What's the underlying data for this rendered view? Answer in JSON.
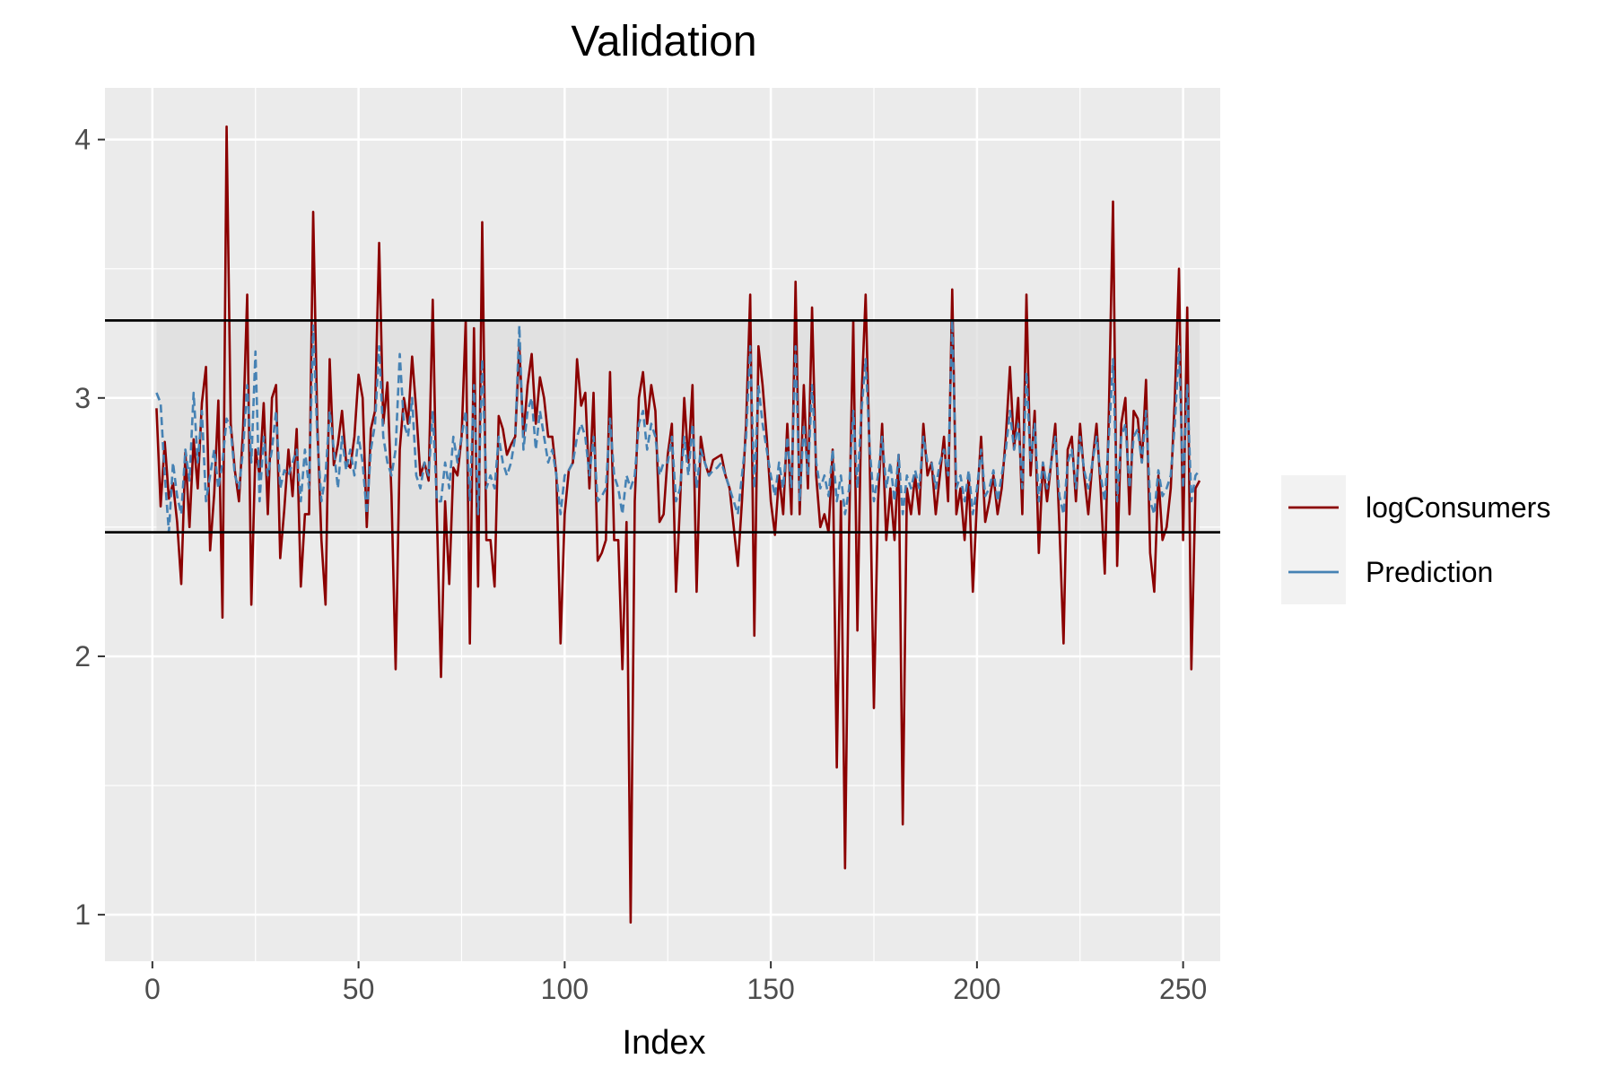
{
  "chart_data": {
    "type": "line",
    "title": "Validation",
    "xlabel": "Index",
    "ylabel": "",
    "xlim": [
      -11.5,
      259
    ],
    "ylim": [
      0.82,
      4.2
    ],
    "x_ticks": [
      0,
      50,
      100,
      150,
      200,
      250
    ],
    "x_tick_labels": [
      "0",
      "50",
      "100",
      "150",
      "200",
      "250"
    ],
    "y_ticks": [
      1,
      2,
      3,
      4
    ],
    "y_tick_labels": [
      "1",
      "2",
      "3",
      "4"
    ],
    "grid": true,
    "legend_position": "right",
    "band": {
      "lower": 2.48,
      "upper": 3.3
    },
    "hlines": [
      2.48,
      3.3
    ],
    "series": [
      {
        "name": "logConsumers",
        "color": "#8B0000",
        "linestyle": "solid",
        "x_start": 1,
        "values": [
          2.96,
          2.58,
          2.83,
          2.61,
          2.67,
          2.52,
          2.28,
          2.79,
          2.5,
          2.84,
          2.65,
          2.98,
          3.12,
          2.41,
          2.63,
          2.99,
          2.15,
          4.05,
          2.9,
          2.72,
          2.6,
          2.88,
          3.4,
          2.2,
          2.8,
          2.7,
          2.98,
          2.55,
          3.0,
          3.05,
          2.38,
          2.57,
          2.8,
          2.62,
          2.88,
          2.27,
          2.55,
          2.55,
          3.72,
          2.9,
          2.45,
          2.2,
          3.15,
          2.74,
          2.82,
          2.95,
          2.75,
          2.73,
          2.85,
          3.09,
          3.0,
          2.5,
          2.88,
          2.95,
          3.6,
          2.9,
          3.06,
          2.62,
          1.95,
          2.8,
          3.0,
          2.9,
          3.16,
          2.95,
          2.7,
          2.75,
          2.68,
          3.38,
          2.55,
          1.92,
          2.6,
          2.28,
          2.73,
          2.7,
          2.85,
          3.3,
          2.05,
          3.27,
          2.27,
          3.68,
          2.45,
          2.45,
          2.27,
          2.93,
          2.88,
          2.78,
          2.82,
          2.85,
          3.2,
          2.85,
          3.05,
          3.17,
          2.9,
          3.08,
          3.0,
          2.85,
          2.85,
          2.7,
          2.05,
          2.55,
          2.72,
          2.75,
          3.15,
          2.97,
          3.02,
          2.65,
          3.02,
          2.37,
          2.4,
          2.45,
          3.1,
          2.45,
          2.45,
          1.95,
          2.52,
          0.97,
          2.6,
          3.0,
          3.1,
          2.9,
          3.05,
          2.95,
          2.52,
          2.55,
          2.78,
          2.9,
          2.25,
          2.6,
          3.0,
          2.75,
          3.05,
          2.25,
          2.85,
          2.75,
          2.7,
          2.76,
          2.77,
          2.78,
          2.7,
          2.65,
          2.5,
          2.35,
          2.6,
          2.9,
          3.4,
          2.08,
          3.2,
          3.05,
          2.85,
          2.6,
          2.47,
          2.7,
          2.55,
          2.9,
          2.55,
          3.45,
          2.55,
          3.05,
          2.65,
          3.35,
          2.7,
          2.5,
          2.55,
          2.48,
          2.8,
          1.57,
          2.6,
          1.18,
          2.5,
          3.3,
          2.1,
          3.0,
          3.4,
          2.75,
          1.8,
          2.6,
          2.9,
          2.45,
          2.65,
          2.45,
          2.78,
          1.35,
          2.65,
          2.55,
          2.7,
          2.55,
          2.9,
          2.7,
          2.75,
          2.55,
          2.7,
          2.85,
          2.6,
          3.42,
          2.55,
          2.65,
          2.45,
          2.7,
          2.25,
          2.6,
          2.85,
          2.52,
          2.6,
          2.7,
          2.55,
          2.65,
          2.85,
          3.12,
          2.8,
          3.0,
          2.55,
          3.4,
          2.7,
          2.95,
          2.4,
          2.75,
          2.6,
          2.75,
          2.9,
          2.5,
          2.05,
          2.8,
          2.85,
          2.6,
          2.9,
          2.7,
          2.55,
          2.75,
          2.9,
          2.65,
          2.32,
          2.95,
          3.76,
          2.35,
          2.9,
          3.0,
          2.55,
          2.95,
          2.92,
          2.75,
          3.07,
          2.4,
          2.25,
          2.7,
          2.45,
          2.5,
          2.65,
          3.0,
          3.5,
          2.45,
          3.35,
          1.95,
          2.65,
          2.68
        ]
      },
      {
        "name": "Prediction",
        "color": "#4682B4",
        "linestyle": "dashed",
        "x_start": 1,
        "values": [
          3.02,
          2.98,
          2.7,
          2.48,
          2.75,
          2.62,
          2.55,
          2.8,
          2.68,
          3.02,
          2.75,
          2.95,
          2.6,
          2.7,
          2.8,
          2.65,
          2.75,
          2.92,
          2.88,
          2.7,
          2.65,
          2.8,
          3.05,
          2.75,
          3.18,
          2.6,
          2.85,
          2.7,
          2.8,
          2.95,
          2.65,
          2.72,
          2.7,
          2.75,
          2.8,
          2.6,
          2.8,
          2.65,
          3.28,
          2.85,
          2.6,
          2.7,
          2.95,
          2.8,
          2.65,
          2.85,
          2.72,
          2.8,
          2.7,
          2.85,
          2.75,
          2.55,
          2.8,
          2.9,
          3.2,
          2.85,
          2.75,
          2.7,
          2.8,
          3.17,
          2.9,
          2.85,
          3.0,
          2.7,
          2.65,
          2.75,
          2.7,
          2.95,
          2.6,
          2.6,
          2.75,
          2.65,
          2.85,
          2.75,
          2.85,
          2.95,
          2.6,
          3.05,
          2.55,
          3.15,
          2.65,
          2.7,
          2.65,
          2.85,
          2.75,
          2.7,
          2.75,
          2.85,
          3.28,
          2.8,
          2.95,
          3.0,
          2.8,
          2.95,
          2.85,
          2.75,
          2.8,
          2.7,
          2.55,
          2.7,
          2.72,
          2.75,
          2.85,
          2.9,
          2.85,
          2.7,
          2.85,
          2.6,
          2.62,
          2.65,
          2.92,
          2.7,
          2.65,
          2.55,
          2.7,
          2.65,
          2.7,
          2.9,
          2.95,
          2.8,
          2.9,
          2.85,
          2.7,
          2.75,
          2.75,
          2.85,
          2.6,
          2.65,
          2.85,
          2.7,
          2.9,
          2.65,
          2.8,
          2.75,
          2.7,
          2.72,
          2.73,
          2.75,
          2.7,
          2.65,
          2.6,
          2.55,
          2.7,
          2.85,
          3.2,
          2.65,
          3.05,
          2.9,
          2.8,
          2.7,
          2.62,
          2.75,
          2.65,
          2.85,
          2.65,
          3.2,
          2.6,
          2.9,
          2.7,
          3.05,
          2.75,
          2.65,
          2.7,
          2.62,
          2.8,
          2.6,
          2.7,
          2.55,
          2.65,
          2.95,
          2.65,
          2.95,
          3.15,
          2.8,
          2.6,
          2.7,
          2.85,
          2.65,
          2.75,
          2.6,
          2.78,
          2.55,
          2.7,
          2.65,
          2.72,
          2.65,
          2.85,
          2.75,
          2.75,
          2.65,
          2.75,
          2.8,
          2.7,
          3.3,
          2.65,
          2.7,
          2.6,
          2.72,
          2.55,
          2.65,
          2.8,
          2.62,
          2.65,
          2.72,
          2.6,
          2.7,
          2.8,
          2.95,
          2.8,
          2.9,
          2.65,
          3.1,
          2.75,
          2.9,
          2.6,
          2.75,
          2.65,
          2.75,
          2.85,
          2.62,
          2.55,
          2.75,
          2.8,
          2.65,
          2.85,
          2.72,
          2.65,
          2.75,
          2.85,
          2.7,
          2.6,
          2.85,
          3.15,
          2.6,
          2.85,
          2.9,
          2.65,
          2.85,
          2.88,
          2.75,
          2.95,
          2.6,
          2.55,
          2.72,
          2.62,
          2.65,
          2.7,
          2.9,
          3.2,
          2.65,
          3.05,
          2.6,
          2.7,
          2.72
        ]
      }
    ]
  },
  "colors": {
    "panel_background": "#EBEBEB",
    "band_fill": "#DEDEDE",
    "grid_major": "#FFFFFF",
    "hline": "#000000",
    "axis_text": "#4D4D4D",
    "legend_background": "#F2F2F2"
  }
}
